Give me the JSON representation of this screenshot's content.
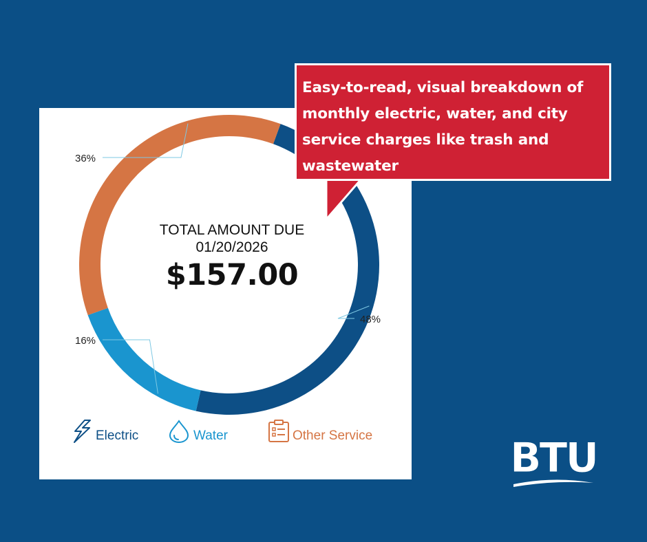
{
  "colors": {
    "background": "#0b4f86",
    "electric": "#0d4f86",
    "water": "#1a95cf",
    "other": "#d57544",
    "callout": "#cf2134",
    "leader": "#7ec8e3"
  },
  "center": {
    "label": "TOTAL AMOUNT DUE",
    "date": "01/20/2026",
    "amount": "$157.00"
  },
  "chart_data": {
    "type": "pie",
    "categories": [
      "Electric",
      "Water",
      "Other Service"
    ],
    "values": [
      48,
      16,
      36
    ],
    "data_labels": [
      "48%",
      "16%",
      "36%"
    ],
    "legend_placement": "bottom"
  },
  "legend": [
    {
      "label": "Electric",
      "icon": "lightning-bolt-icon",
      "color": "#0d4f86"
    },
    {
      "label": "Water",
      "icon": "water-drop-icon",
      "color": "#1a95cf"
    },
    {
      "label": "Other Service",
      "icon": "clipboard-list-icon",
      "color": "#d57544"
    }
  ],
  "callout": {
    "text": "Easy-to-read, visual breakdown of monthly electric, water, and city service charges like trash and wastewater"
  },
  "logo": {
    "text": "BTU"
  }
}
